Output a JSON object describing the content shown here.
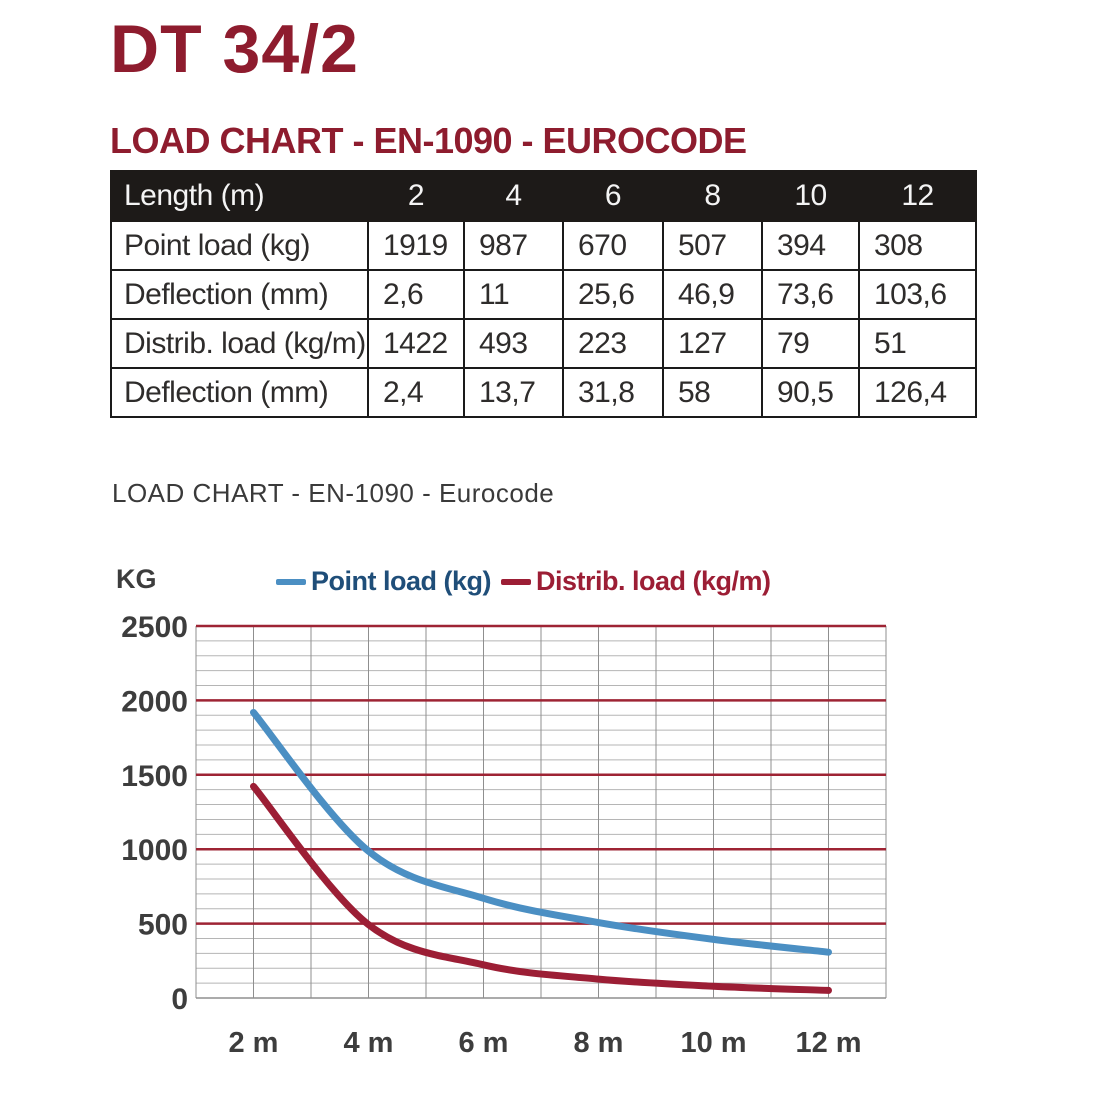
{
  "page": {
    "title": "DT 34/2",
    "heading": "LOAD CHART - EN-1090 - EUROCODE",
    "subtitle": "LOAD CHART - EN-1090 - Eurocode"
  },
  "table": {
    "header": [
      "Length (m)",
      "2",
      "4",
      "6",
      "8",
      "10",
      "12"
    ],
    "rows": [
      {
        "label": "Point load (kg)",
        "values": [
          "1919",
          "987",
          "670",
          "507",
          "394",
          "308"
        ]
      },
      {
        "label": "Deflection (mm)",
        "values": [
          "2,6",
          "11",
          "25,6",
          "46,9",
          "73,6",
          "103,6"
        ]
      },
      {
        "label": "Distrib. load (kg/m)",
        "values": [
          "1422",
          "493",
          "223",
          "127",
          "79",
          "51"
        ]
      },
      {
        "label": "Deflection (mm)",
        "values": [
          "2,4",
          "13,7",
          "31,8",
          "58",
          "90,5",
          "126,4"
        ]
      }
    ]
  },
  "chart_data": {
    "type": "line",
    "title": "LOAD CHART - EN-1090 - Eurocode",
    "ylabel": "KG",
    "xlabel": "",
    "x": [
      2,
      4,
      6,
      8,
      10,
      12
    ],
    "x_tick_labels": [
      "2 m",
      "4 m",
      "6 m",
      "8 m",
      "10 m",
      "12 m"
    ],
    "y_tick_labels": [
      "0",
      "500",
      "1000",
      "1500",
      "2000",
      "2500"
    ],
    "series": [
      {
        "name": "Point load (kg)",
        "values": [
          1919,
          987,
          670,
          507,
          394,
          308
        ],
        "line_color": "#4b8fc3",
        "text_color": "#1f4e79"
      },
      {
        "name": "Distrib. load (kg/m)",
        "values": [
          1422,
          493,
          223,
          127,
          79,
          51
        ],
        "line_color": "#9c1e35",
        "text_color": "#9c1e35"
      }
    ],
    "xlim": [
      1,
      13
    ],
    "ylim": [
      0,
      2500
    ],
    "y_major_step": 500,
    "y_minor_step": 100,
    "x_grid_step": 1,
    "grid": true,
    "legend_position": "top",
    "colors": {
      "major_grid": "#9e2434",
      "minor_grid": "#b5b5b5",
      "vertical_grid": "#8f8f8f",
      "zero_axis": "#8f8f8f",
      "tick_text": "#3d3d3d"
    }
  }
}
